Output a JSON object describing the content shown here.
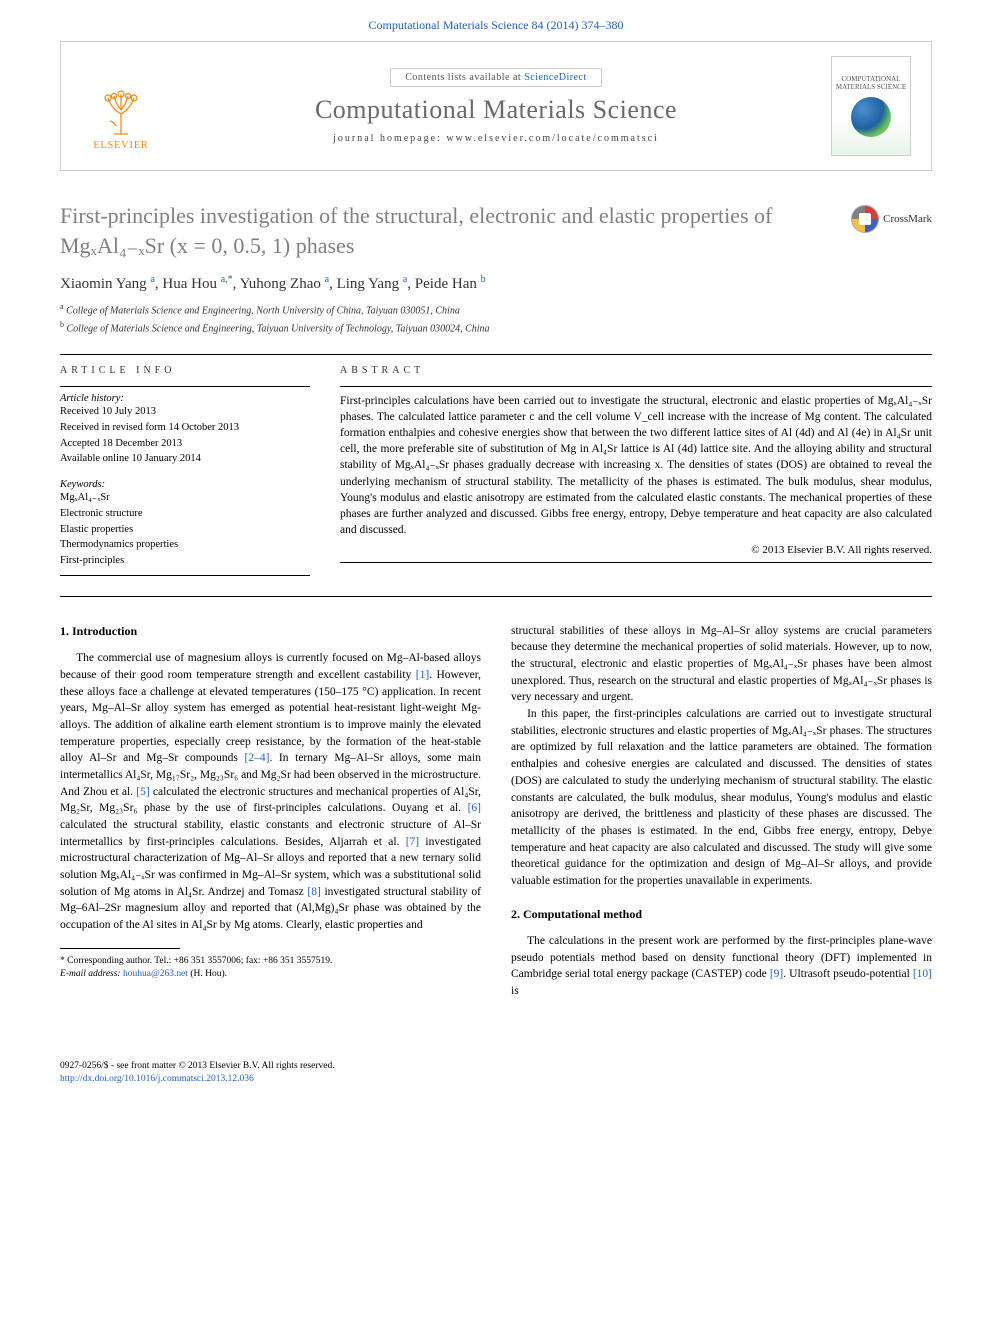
{
  "header": {
    "citation": "Computational Materials Science 84 (2014) 374–380",
    "contents_label": "Contents lists available at",
    "contents_link": "ScienceDirect",
    "journal_name": "Computational Materials Science",
    "homepage_label": "journal homepage: www.elsevier.com/locate/commatsci",
    "publisher": "ELSEVIER",
    "cover_title": "COMPUTATIONAL MATERIALS SCIENCE"
  },
  "crossmark": {
    "label": "CrossMark"
  },
  "title": "First-principles investigation of the structural, electronic and elastic properties of MgₓAl₄₋ₓSr (x = 0, 0.5, 1) phases",
  "authors_html": "Xiaomin Yang <span class='sup'>a</span>, Hua Hou <span class='sup'>a,*</span>, Yuhong Zhao <span class='sup'>a</span>, Ling Yang <span class='sup'>a</span>, Peide Han <span class='sup'>b</span>",
  "affiliations": {
    "a": "College of Materials Science and Engineering, North University of China, Taiyuan 030051, China",
    "b": "College of Materials Science and Engineering, Taiyuan University of Technology, Taiyuan 030024, China"
  },
  "article_info": {
    "heading": "ARTICLE INFO",
    "history_label": "Article history:",
    "history": [
      "Received 10 July 2013",
      "Received in revised form 14 October 2013",
      "Accepted 18 December 2013",
      "Available online 10 January 2014"
    ],
    "keywords_label": "Keywords:",
    "keywords": [
      "MgₓAl₄₋ₓSr",
      "Electronic structure",
      "Elastic properties",
      "Thermodynamics properties",
      "First-principles"
    ]
  },
  "abstract": {
    "heading": "ABSTRACT",
    "text": "First-principles calculations have been carried out to investigate the structural, electronic and elastic properties of MgₓAl₄₋ₓSr phases. The calculated lattice parameter c and the cell volume V_cell increase with the increase of Mg content. The calculated formation enthalpies and cohesive energies show that between the two different lattice sites of Al (4d) and Al (4e) in Al₄Sr unit cell, the more preferable site of substitution of Mg in Al₄Sr lattice is Al (4d) lattice site. And the alloying ability and structural stability of MgₓAl₄₋ₓSr phases gradually decrease with increasing x. The densities of states (DOS) are obtained to reveal the underlying mechanism of structural stability. The metallicity of the phases is estimated. The bulk modulus, shear modulus, Young's modulus and elastic anisotropy are estimated from the calculated elastic constants. The mechanical properties of these phases are further analyzed and discussed. Gibbs free energy, entropy, Debye temperature and heat capacity are also calculated and discussed.",
    "copyright": "© 2013 Elsevier B.V. All rights reserved."
  },
  "sections": {
    "intro_heading": "1. Introduction",
    "intro_p1": "The commercial use of magnesium alloys is currently focused on Mg–Al-based alloys because of their good room temperature strength and excellent castability [1]. However, these alloys face a challenge at elevated temperatures (150–175 °C) application. In recent years, Mg–Al–Sr alloy system has emerged as potential heat-resistant light-weight Mg-alloys. The addition of alkaline earth element strontium is to improve mainly the elevated temperature properties, especially creep resistance, by the formation of the heat-stable alloy Al–Sr and Mg–Sr compounds [2–4]. In ternary Mg–Al–Sr alloys, some main intermetallics Al₄Sr, Mg₁₇Sr₂, Mg₂₃Sr₆ and Mg₂Sr had been observed in the microstructure. And Zhou et al. [5] calculated the electronic structures and mechanical properties of Al₄Sr, Mg₂Sr, Mg₂₃Sr₆ phase by the use of first-principles calculations. Ouyang et al. [6] calculated the structural stability, elastic constants and electronic structure of Al–Sr intermetallics by first-principles calculations. Besides, Aljarrah et al. [7] investigated microstructural characterization of Mg–Al–Sr alloys and reported that a new ternary solid solution MgₓAl₄₋ₓSr was confirmed in Mg–Al–Sr system, which was a substitutional solid solution of Mg atoms in Al₄Sr. Andrzej and Tomasz [8] investigated structural stability of Mg–6Al–2Sr magnesium alloy and reported that (Al,Mg)₄Sr phase was obtained by the occupation of the Al sites in Al₄Sr by Mg atoms. Clearly, elastic properties and",
    "intro_p2": "structural stabilities of these alloys in Mg–Al–Sr alloy systems are crucial parameters because they determine the mechanical properties of solid materials. However, up to now, the structural, electronic and elastic properties of MgₓAl₄₋ₓSr phases have been almost unexplored. Thus, research on the structural and elastic properties of MgₓAl₄₋ₓSr phases is very necessary and urgent.",
    "intro_p3": "In this paper, the first-principles calculations are carried out to investigate structural stabilities, electronic structures and elastic properties of MgₓAl₄₋ₓSr phases. The structures are optimized by full relaxation and the lattice parameters are obtained. The formation enthalpies and cohesive energies are calculated and discussed. The densities of states (DOS) are calculated to study the underlying mechanism of structural stability. The elastic constants are calculated, the bulk modulus, shear modulus, Young's modulus and elastic anisotropy are derived, the brittleness and plasticity of these phases are discussed. The metallicity of the phases is estimated. In the end, Gibbs free energy, entropy, Debye temperature and heat capacity are also calculated and discussed. The study will give some theoretical guidance for the optimization and design of Mg–Al–Sr alloys, and provide valuable estimation for the properties unavailable in experiments.",
    "method_heading": "2. Computational method",
    "method_p1": "The calculations in the present work are performed by the first-principles plane-wave pseudo potentials method based on density functional theory (DFT) implemented in Cambridge serial total energy package (CASTEP) code [9]. Ultrasoft pseudo-potential [10] is"
  },
  "footnote": {
    "corr": "* Corresponding author. Tel.: +86 351 3557006; fax: +86 351 3557519.",
    "email_label": "E-mail address:",
    "email": "houhua@263.net",
    "email_who": "(H. Hou)."
  },
  "footer": {
    "line1": "0927-0256/$ - see front matter © 2013 Elsevier B.V. All rights reserved.",
    "doi": "http://dx.doi.org/10.1016/j.commatsci.2013.12.036"
  },
  "colors": {
    "link": "#2060c0",
    "title_gray": "#808080",
    "elsevier_orange": "#ff8000"
  }
}
